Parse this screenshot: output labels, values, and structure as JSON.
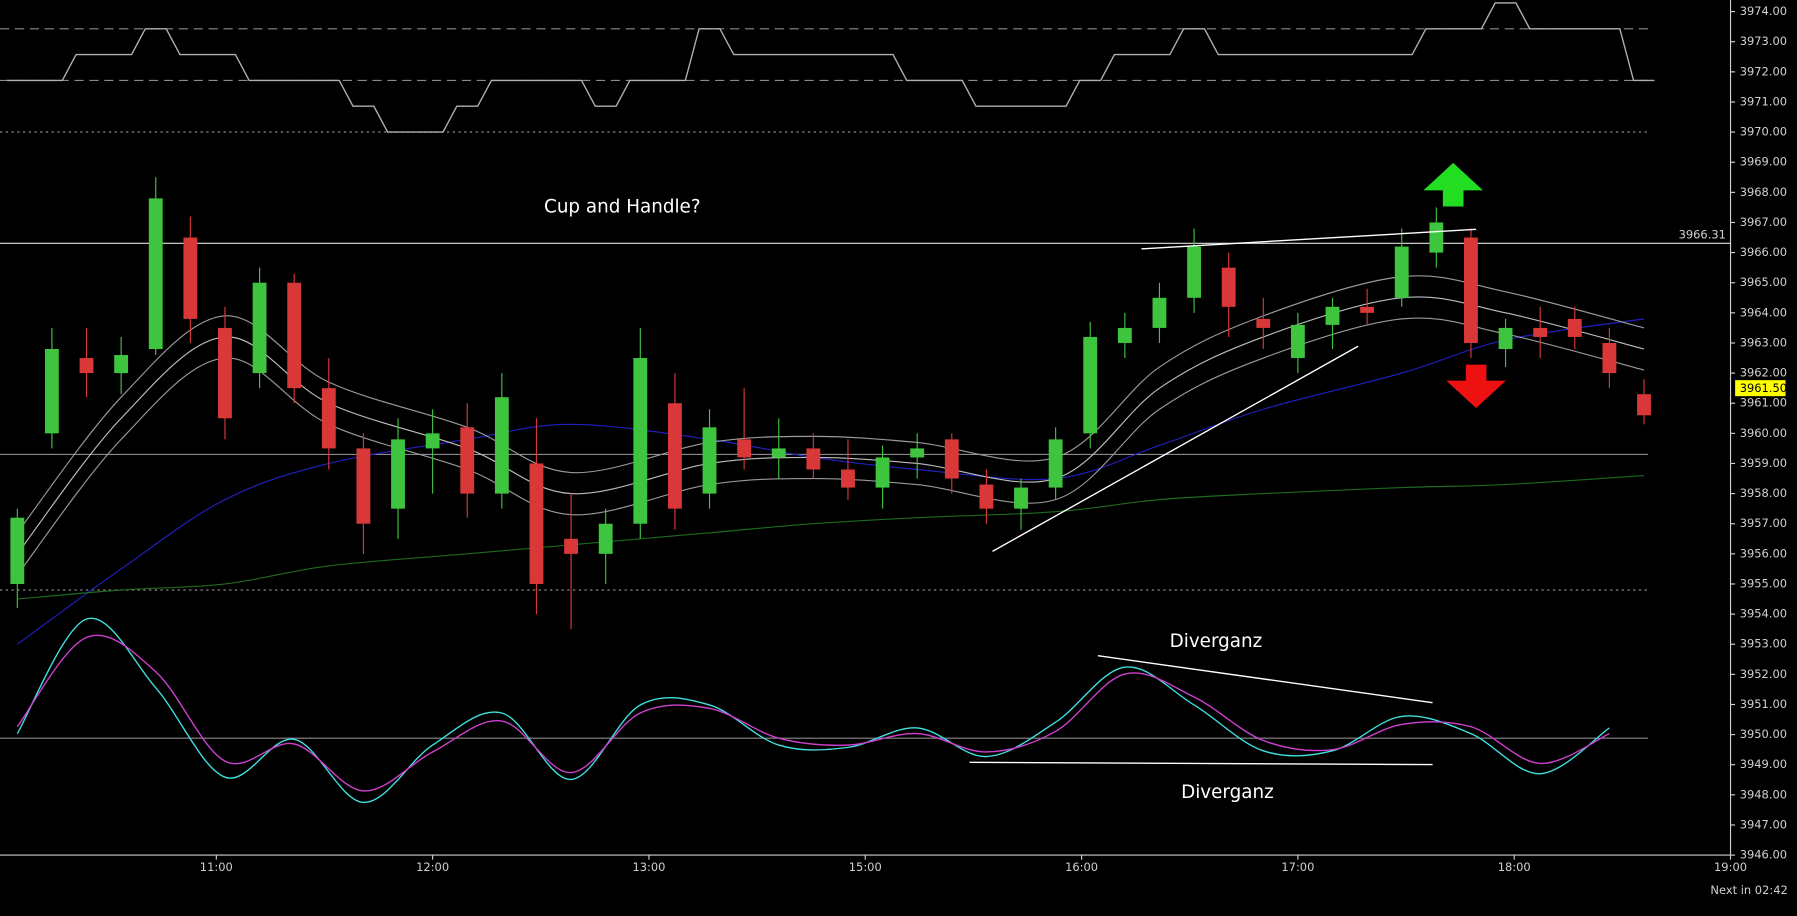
{
  "chart_data": {
    "type": "candlestick",
    "up_color": "#3fc43f",
    "down_color": "#d93838",
    "open": [
      3955.0,
      3960.0,
      3962.5,
      3962.0,
      3962.8,
      3966.5,
      3963.5,
      3962.0,
      3965.0,
      3961.5,
      3959.5,
      3957.5,
      3959.5,
      3960.2,
      3958.0,
      3959.0,
      3956.5,
      3956.0,
      3957.0,
      3961.0,
      3958.0,
      3959.8,
      3959.2,
      3959.5,
      3958.8,
      3958.2,
      3959.2,
      3959.8,
      3958.3,
      3957.5,
      3958.2,
      3960.0,
      3963.0,
      3963.5,
      3964.5,
      3965.5,
      3963.8,
      3962.5,
      3963.6,
      3964.2,
      3964.5,
      3966.0,
      3966.5,
      3962.8,
      3963.5,
      3963.8,
      3963.0,
      3961.3
    ],
    "high": [
      3957.5,
      3963.5,
      3963.5,
      3963.2,
      3968.5,
      3967.2,
      3964.2,
      3965.5,
      3965.3,
      3962.5,
      3960.0,
      3960.5,
      3960.8,
      3961.0,
      3962.0,
      3960.5,
      3958.0,
      3957.5,
      3963.5,
      3962.0,
      3960.8,
      3961.5,
      3960.5,
      3960.0,
      3959.8,
      3959.6,
      3960.0,
      3960.0,
      3958.8,
      3958.5,
      3960.2,
      3963.7,
      3964.0,
      3965.0,
      3966.8,
      3966.0,
      3964.5,
      3964.0,
      3964.5,
      3964.8,
      3966.8,
      3967.5,
      3966.8,
      3963.8,
      3964.2,
      3964.2,
      3963.5,
      3961.8
    ],
    "low": [
      3954.2,
      3959.5,
      3961.2,
      3961.3,
      3962.6,
      3963.0,
      3959.8,
      3961.5,
      3961.0,
      3958.8,
      3956.0,
      3956.5,
      3958.0,
      3957.2,
      3957.5,
      3954.0,
      3953.5,
      3955.0,
      3956.5,
      3956.8,
      3957.5,
      3958.8,
      3958.5,
      3958.5,
      3957.8,
      3957.5,
      3958.5,
      3958.0,
      3957.0,
      3956.8,
      3957.8,
      3959.5,
      3962.5,
      3963.0,
      3964.0,
      3963.2,
      3962.8,
      3962.0,
      3962.8,
      3963.6,
      3964.2,
      3965.5,
      3962.5,
      3962.2,
      3962.5,
      3962.8,
      3961.5,
      3960.3
    ],
    "close": [
      3957.2,
      3962.8,
      3962.0,
      3962.6,
      3967.8,
      3963.8,
      3960.5,
      3965.0,
      3961.5,
      3959.5,
      3957.0,
      3959.8,
      3960.0,
      3958.0,
      3961.2,
      3955.0,
      3956.0,
      3957.0,
      3962.5,
      3957.5,
      3960.2,
      3959.2,
      3959.5,
      3958.8,
      3958.2,
      3959.2,
      3959.5,
      3958.5,
      3957.5,
      3958.2,
      3959.8,
      3963.2,
      3963.5,
      3964.5,
      3966.2,
      3964.2,
      3963.5,
      3963.6,
      3964.2,
      3964.0,
      3966.2,
      3967.0,
      3963.0,
      3963.5,
      3963.2,
      3963.2,
      3962.0,
      3960.6
    ],
    "xlim": [
      -0.5,
      49.5
    ],
    "xticks": [
      {
        "value": 5.75,
        "label": "11:00"
      },
      {
        "value": 12,
        "label": "12:00"
      },
      {
        "value": 18.25,
        "label": "13:00"
      },
      {
        "value": 24.5,
        "label": "15:00"
      },
      {
        "value": 30.75,
        "label": "16:00"
      },
      {
        "value": 37,
        "label": "17:00"
      },
      {
        "value": 43.25,
        "label": "18:00"
      },
      {
        "value": 49.5,
        "label": "19:00"
      }
    ],
    "ylim": [
      3946,
      3974.38
    ],
    "yticks": [
      {
        "value": 3946,
        "label": "3946.00"
      },
      {
        "value": 3947,
        "label": "3947.00"
      },
      {
        "value": 3948,
        "label": "3948.00"
      },
      {
        "value": 3949,
        "label": "3949.00"
      },
      {
        "value": 3950,
        "label": "3950.00"
      },
      {
        "value": 3951,
        "label": "3951.00"
      },
      {
        "value": 3952,
        "label": "3952.00"
      },
      {
        "value": 3953,
        "label": "3953.00"
      },
      {
        "value": 3954,
        "label": "3954.00"
      },
      {
        "value": 3955,
        "label": "3955.00"
      },
      {
        "value": 3956,
        "label": "3956.00"
      },
      {
        "value": 3957,
        "label": "3957.00"
      },
      {
        "value": 3958,
        "label": "3958.00"
      },
      {
        "value": 3959,
        "label": "3959.00"
      },
      {
        "value": 3960,
        "label": "3960.00"
      },
      {
        "value": 3961,
        "label": "3961.00"
      },
      {
        "value": 3962,
        "label": "3962.00"
      },
      {
        "value": 3963,
        "label": "3963.00"
      },
      {
        "value": 3964,
        "label": "3964.00"
      },
      {
        "value": 3965,
        "label": "3965.00"
      },
      {
        "value": 3966,
        "label": "3966.00"
      },
      {
        "value": 3967,
        "label": "3967.00"
      },
      {
        "value": 3968,
        "label": "3968.00"
      },
      {
        "value": 3969,
        "label": "3969.00"
      },
      {
        "value": 3970,
        "label": "3970.00"
      },
      {
        "value": 3971,
        "label": "3971.00"
      },
      {
        "value": 3972,
        "label": "3972.00"
      },
      {
        "value": 3973,
        "label": "3973.00"
      },
      {
        "value": 3974,
        "label": "3974.00"
      }
    ],
    "overlay_x": [
      0,
      3,
      6,
      9,
      13,
      16,
      20,
      23,
      26,
      30,
      33,
      36,
      40,
      43,
      47
    ],
    "overlays": [
      {
        "color": "#2020c0",
        "values": [
          3953.0,
          3955.5,
          3957.8,
          3959.0,
          3959.8,
          3960.3,
          3959.8,
          3959.2,
          3958.8,
          3958.5,
          3959.6,
          3960.8,
          3962.0,
          3963.1,
          3963.8
        ]
      },
      {
        "color": "#1e6a1e",
        "values": [
          3954.5,
          3954.8,
          3955.0,
          3955.6,
          3956.0,
          3956.3,
          3956.7,
          3957.0,
          3957.2,
          3957.4,
          3957.8,
          3958.0,
          3958.2,
          3958.3,
          3958.6
        ]
      },
      {
        "color": "#9a9a9a",
        "values": [
          3956.7,
          3961.2,
          3963.9,
          3961.7,
          3960.2,
          3958.7,
          3959.7,
          3959.9,
          3959.7,
          3959.2,
          3962.2,
          3963.9,
          3965.2,
          3964.7,
          3963.5
        ]
      },
      {
        "color": "#bdbdbd",
        "values": [
          3956.0,
          3960.5,
          3963.2,
          3961.0,
          3959.5,
          3958.0,
          3959.0,
          3959.2,
          3959.0,
          3958.5,
          3961.5,
          3963.2,
          3964.5,
          3964.0,
          3962.8
        ]
      },
      {
        "color": "#9a9a9a",
        "values": [
          3955.3,
          3959.8,
          3962.5,
          3960.3,
          3958.8,
          3957.3,
          3958.3,
          3958.5,
          3958.3,
          3957.8,
          3960.8,
          3962.5,
          3963.8,
          3963.3,
          3962.1
        ]
      }
    ],
    "hlines": [
      {
        "value": 3966.31,
        "label": "3966.31",
        "color": "#e0e0e0"
      },
      {
        "value": 3959.3,
        "color": "#8a8a8a"
      },
      {
        "value": 3954.8,
        "color": "#8a8a8a",
        "dash": "dotted"
      }
    ],
    "last_price": {
      "value": 3961.5,
      "label": "3961.50",
      "color": "#ffff00"
    },
    "oscillator": {
      "ylim": [
        -110,
        110
      ],
      "levels": [
        0
      ],
      "x": [
        0,
        2,
        4,
        6,
        8,
        10,
        12,
        14,
        16,
        18,
        20,
        22,
        24,
        26,
        28,
        30,
        32,
        34,
        36,
        38,
        40,
        42,
        44,
        46
      ],
      "series": [
        {
          "color": "#40e0e0",
          "values": [
            4,
            104,
            44,
            -34,
            -1,
            -56,
            -6,
            22,
            -36,
            29,
            29,
            -6,
            -8,
            9,
            -16,
            14,
            62,
            29,
            -11,
            -11,
            19,
            4,
            -31,
            9
          ]
        },
        {
          "color": "#d040d0",
          "values": [
            10,
            88,
            58,
            -20,
            -5,
            -46,
            -12,
            15,
            -30,
            22,
            26,
            0,
            -6,
            4,
            -12,
            6,
            56,
            36,
            -2,
            -10,
            12,
            10,
            -22,
            4
          ]
        }
      ]
    },
    "step_indicator": {
      "ylim": [
        -2.22,
        3.11
      ],
      "levels": [
        2,
        0,
        -2
      ],
      "color": "#b0b0b0",
      "values": [
        0,
        0,
        1,
        1,
        2,
        1,
        1,
        0,
        0,
        0,
        -1,
        -2,
        -2,
        -1,
        0,
        0,
        0,
        -1,
        0,
        0,
        2,
        1,
        1,
        1,
        1,
        1,
        0,
        0,
        -1,
        -1,
        -1,
        0,
        1,
        1,
        2,
        1,
        1,
        1,
        1,
        1,
        1,
        2,
        2,
        3,
        2,
        2,
        2,
        0
      ]
    },
    "annotations": [
      "Cup and Handle?",
      "Diverganz",
      "Diverganz"
    ],
    "footer": "Next in 02:42"
  }
}
